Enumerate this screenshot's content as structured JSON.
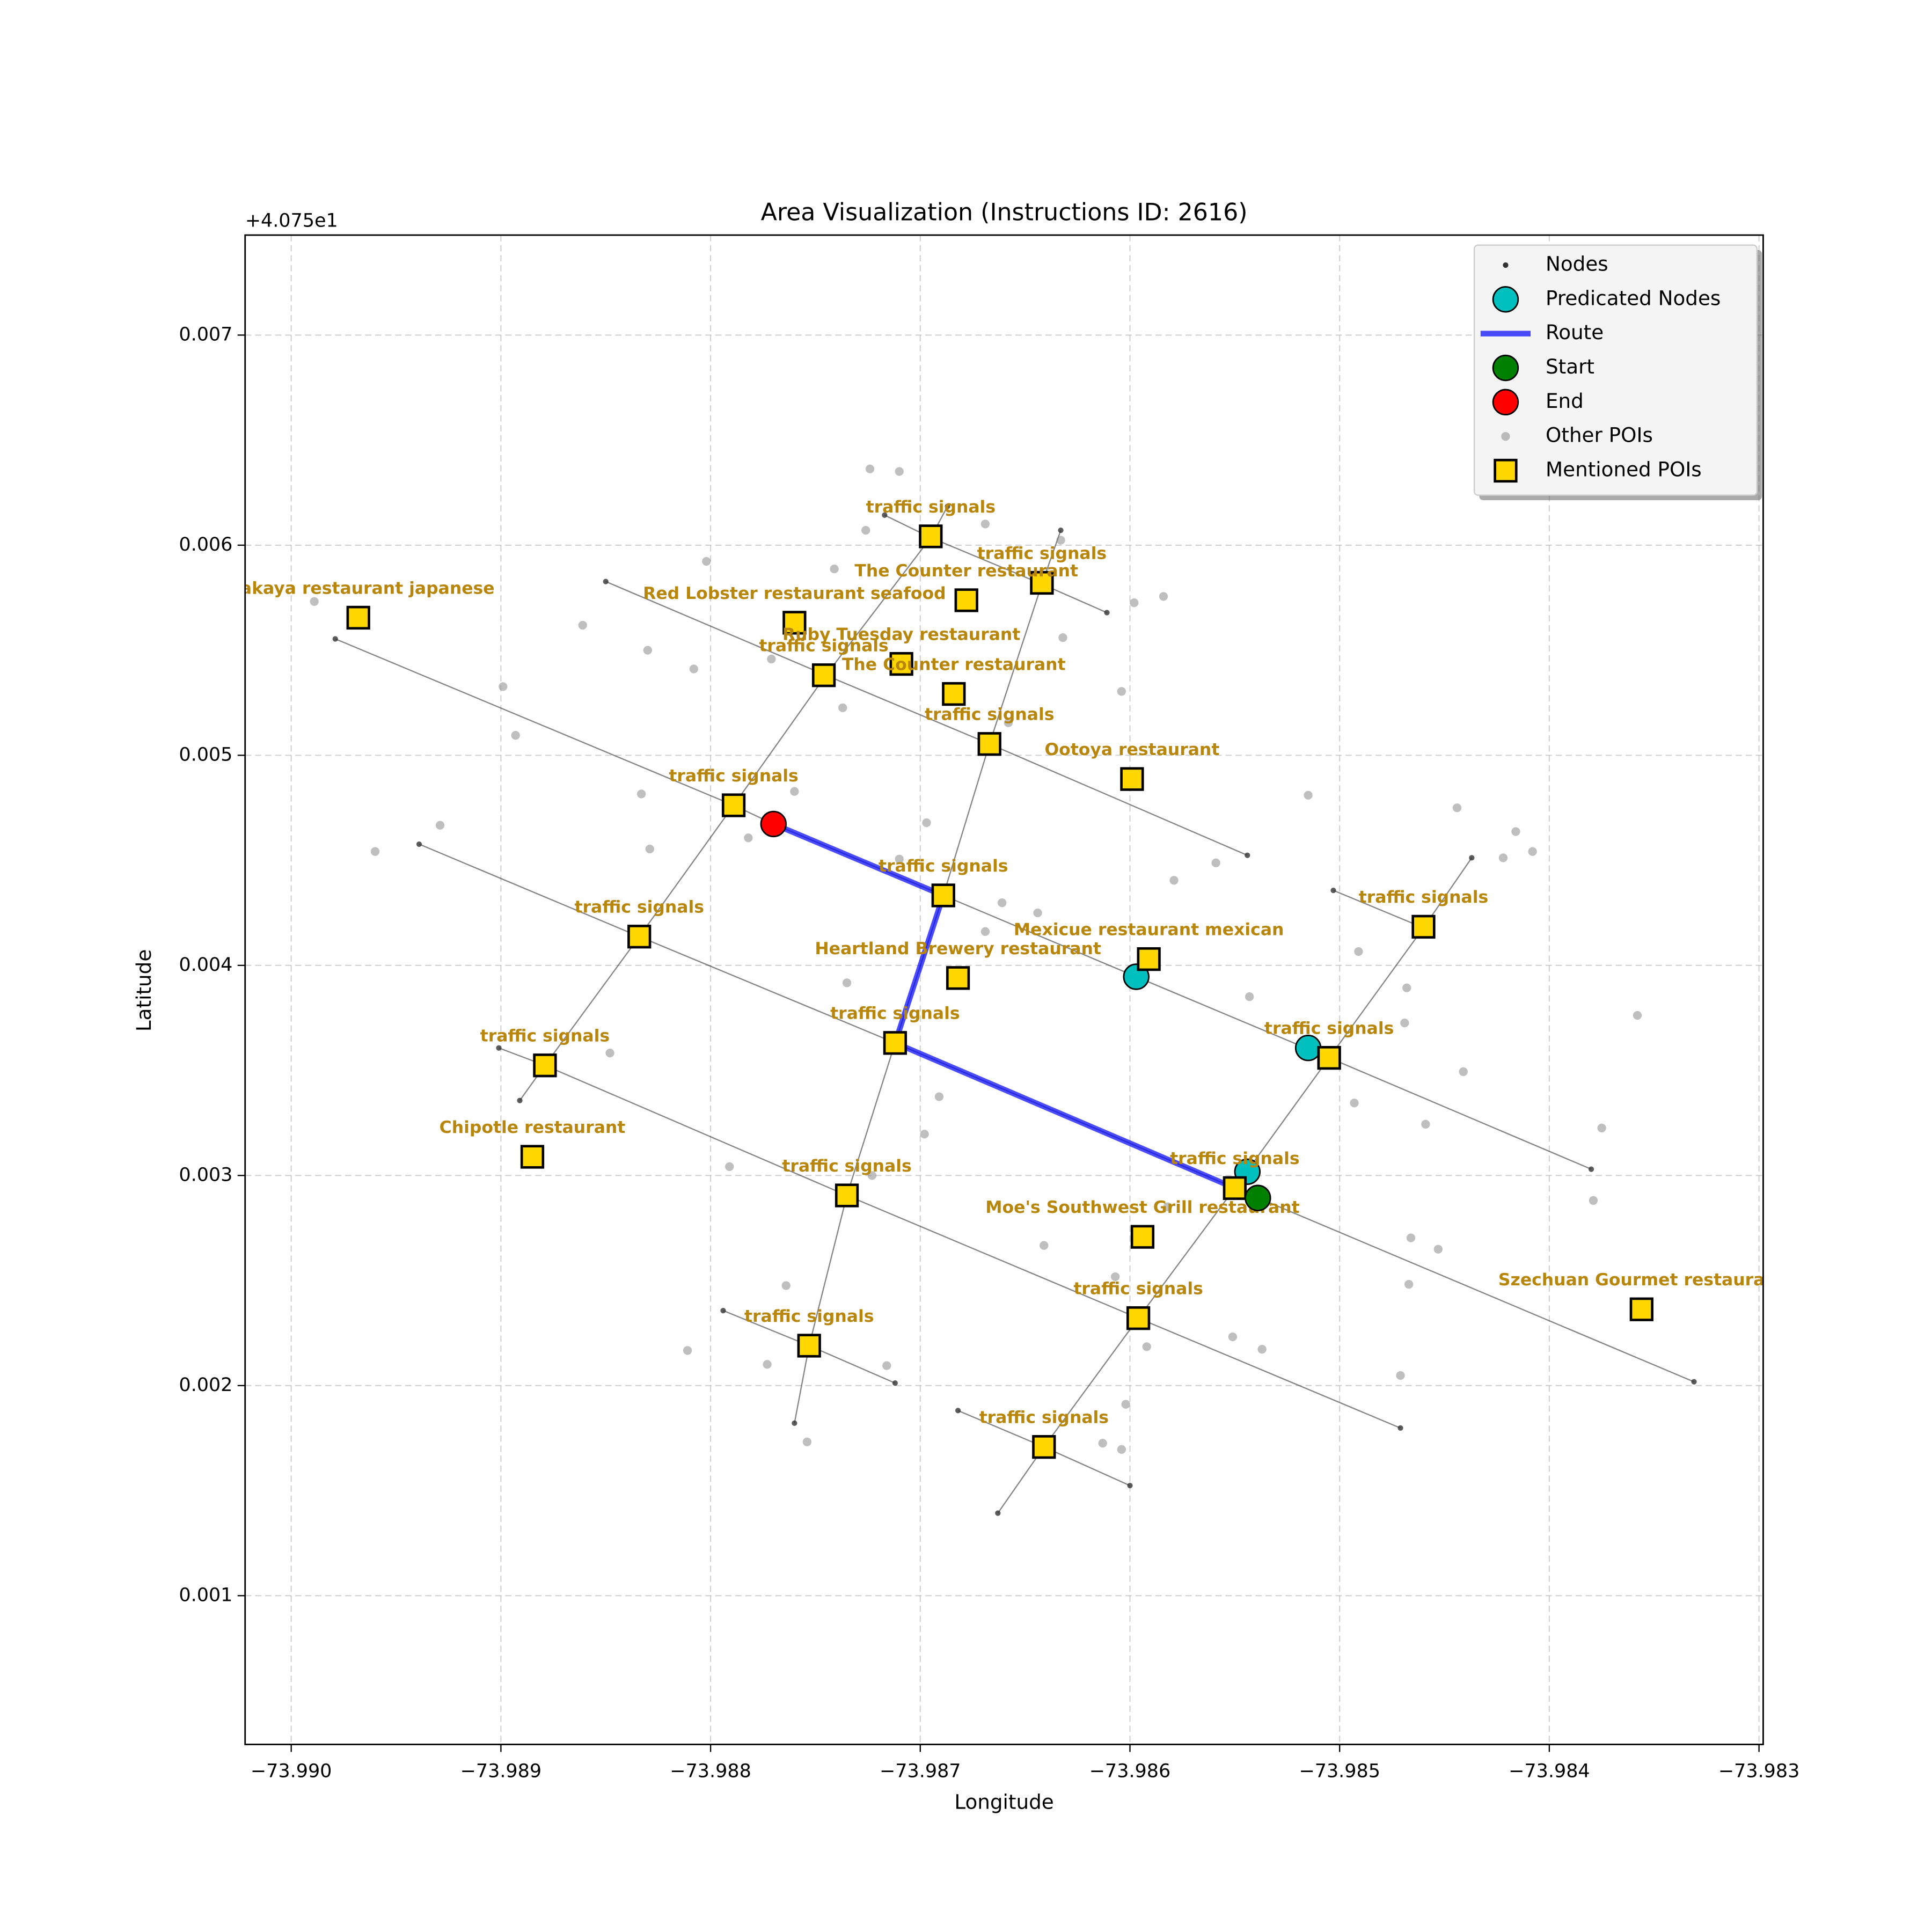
{
  "chart_data": {
    "type": "scatter",
    "title": "Area Visualization (Instructions ID: 2616)",
    "x_label": "Longitude",
    "y_label": "Latitude",
    "y_offset_label": "+4.075e1",
    "xlim": [
      -73.99022,
      -73.98298
    ],
    "ylim": [
      0.000292,
      0.007476
    ],
    "xticks": [
      {
        "value": -73.99,
        "label": "−73.990"
      },
      {
        "value": -73.989,
        "label": "−73.989"
      },
      {
        "value": -73.988,
        "label": "−73.988"
      },
      {
        "value": -73.987,
        "label": "−73.987"
      },
      {
        "value": -73.986,
        "label": "−73.986"
      },
      {
        "value": -73.985,
        "label": "−73.985"
      },
      {
        "value": -73.984,
        "label": "−73.984"
      },
      {
        "value": -73.983,
        "label": "−73.983"
      }
    ],
    "yticks": [
      0.001,
      0.002,
      0.003,
      0.004,
      0.005,
      0.006,
      0.007
    ],
    "grid": true,
    "legend": "upper right",
    "series": [
      {
        "name": "Nodes",
        "color": "#333333",
        "streets": [
          {
            "x": [
              -73.98979,
              -73.98789,
              -73.9877,
              -73.98689,
              -73.98597,
              -73.98505,
              -73.9838
            ],
            "y": [
              0.005554,
              0.004762,
              0.004673,
              0.004333,
              0.003946,
              0.00356,
              0.00303
            ]
          },
          {
            "x": [
              -73.9885,
              -73.98745,
              -73.98667,
              -73.98544
            ],
            "y": [
              0.005827,
              0.005381,
              0.005054,
              0.004524
            ]
          },
          {
            "x": [
              -73.98717,
              -73.98695,
              -73.98642,
              -73.98611
            ],
            "y": [
              0.006143,
              0.006036,
              0.005815,
              0.005679
            ]
          },
          {
            "x": [
              -73.98939,
              -73.98834,
              -73.98712,
              -73.9855,
              -73.98331
            ],
            "y": [
              0.004577,
              0.004137,
              0.003631,
              0.00294,
              0.002018
            ]
          },
          {
            "x": [
              -73.98901,
              -73.98879,
              -73.98735,
              -73.98596,
              -73.98471
            ],
            "y": [
              0.003607,
              0.003524,
              0.002905,
              0.002321,
              0.001798
            ]
          },
          {
            "x": [
              -73.98503,
              -73.9846
            ],
            "y": [
              0.004357,
              0.004179
            ]
          },
          {
            "x": [
              -73.98794,
              -73.98753,
              -73.98712
            ],
            "y": [
              0.002357,
              0.00219,
              0.002012
            ]
          },
          {
            "x": [
              -73.98682,
              -73.98641,
              -73.986
            ],
            "y": [
              0.001881,
              0.001708,
              0.001524
            ]
          },
          {
            "x": [
              -73.98891,
              -73.98879,
              -73.98834,
              -73.98789,
              -73.98745,
              -73.98695,
              -73.98687
            ],
            "y": [
              0.003357,
              0.003524,
              0.004137,
              0.004762,
              0.005381,
              0.006036,
              0.006185
            ]
          },
          {
            "x": [
              -73.9876,
              -73.98753,
              -73.98735,
              -73.98712,
              -73.98689,
              -73.98667,
              -73.98642,
              -73.98633
            ],
            "y": [
              0.001821,
              0.00219,
              0.002905,
              0.003631,
              0.004333,
              0.005054,
              0.005815,
              0.006071
            ]
          },
          {
            "x": [
              -73.98663,
              -73.98641,
              -73.98596,
              -73.9855,
              -73.98505,
              -73.9846,
              -73.98437
            ],
            "y": [
              0.001393,
              0.001708,
              0.002321,
              0.00294,
              0.00356,
              0.004179,
              0.004512
            ]
          }
        ]
      },
      {
        "name": "Predicated Nodes",
        "color": "#00bfbf",
        "x": [
          -73.98597,
          -73.98515,
          -73.98544
        ],
        "y": [
          0.003946,
          0.003607,
          0.003018
        ]
      },
      {
        "name": "Route",
        "color": "#0000ff",
        "x": [
          -73.9877,
          -73.98689,
          -73.98712,
          -73.9855
        ],
        "y": [
          0.004673,
          0.004333,
          0.003631,
          0.00294
        ]
      },
      {
        "name": "Start",
        "color": "#008000",
        "x": [
          -73.98539
        ],
        "y": [
          0.002893
        ]
      },
      {
        "name": "End",
        "color": "#ff0000",
        "x": [
          -73.9877
        ],
        "y": [
          0.004673
        ]
      },
      {
        "name": "Other POIs",
        "color": "#808080",
        "x": [
          -73.98724,
          -73.9871,
          -73.98726,
          -73.98669,
          -73.98633,
          -73.98741,
          -73.98584,
          -73.98598,
          -73.98632,
          -73.98771,
          -73.98808,
          -73.9883,
          -73.98861,
          -73.98802,
          -73.98989,
          -73.98899,
          -73.98893,
          -73.98604,
          -73.98737,
          -73.98658,
          -73.98833,
          -73.9876,
          -73.9896,
          -73.98929,
          -73.98829,
          -73.98782,
          -73.98697,
          -73.9871,
          -73.98661,
          -73.98644,
          -73.98669,
          -73.98579,
          -73.98559,
          -73.98515,
          -73.98444,
          -73.98416,
          -73.98408,
          -73.98422,
          -73.98735,
          -73.98543,
          -73.98491,
          -73.98468,
          -73.98469,
          -73.98441,
          -73.98358,
          -73.98493,
          -73.98459,
          -73.98375,
          -73.98379,
          -73.98691,
          -73.98698,
          -73.98848,
          -73.98791,
          -73.98723,
          -73.98641,
          -73.98607,
          -73.98466,
          -73.98453,
          -73.98467,
          -73.98764,
          -73.98773,
          -73.98716,
          -73.98811,
          -73.98754,
          -73.98602,
          -73.98613,
          -73.98604,
          -73.98551,
          -73.98537,
          -73.98592,
          -73.98471,
          -73.98582
        ],
        "y": [
          0.006363,
          0.006351,
          0.006071,
          0.006101,
          0.006024,
          0.005887,
          0.005756,
          0.005726,
          0.00556,
          0.005458,
          0.005411,
          0.0055,
          0.005619,
          0.005923,
          0.005732,
          0.005327,
          0.005095,
          0.005304,
          0.005226,
          0.005155,
          0.004816,
          0.004828,
          0.004542,
          0.004667,
          0.004554,
          0.004607,
          0.004679,
          0.004506,
          0.004298,
          0.00425,
          0.004161,
          0.004405,
          0.004488,
          0.00481,
          0.00475,
          0.004637,
          0.004542,
          0.004512,
          0.003917,
          0.003851,
          0.004066,
          0.003893,
          0.003726,
          0.003494,
          0.003762,
          0.003345,
          0.003244,
          0.003226,
          0.002881,
          0.003375,
          0.003197,
          0.003583,
          0.003042,
          0.003,
          0.002667,
          0.002518,
          0.002703,
          0.002649,
          0.002482,
          0.002476,
          0.002101,
          0.002095,
          0.002167,
          0.001732,
          0.001911,
          0.001726,
          0.001696,
          0.002232,
          0.002173,
          0.002185,
          0.002048,
          0.002851
        ]
      },
      {
        "name": "Mentioned POIs",
        "color": "#ffd700",
        "label_color": "#b8860b",
        "x": [
          -73.98968,
          -73.9876,
          -73.98695,
          -73.98642,
          -73.98678,
          -73.98746,
          -73.98709,
          -73.98684,
          -73.98667,
          -73.98599,
          -73.98789,
          -73.98689,
          -73.98834,
          -73.98591,
          -73.98682,
          -73.9846,
          -73.98712,
          -73.98879,
          -73.98505,
          -73.98885,
          -73.9855,
          -73.98735,
          -73.98594,
          -73.98356,
          -73.98596,
          -73.98753,
          -73.98641
        ],
        "y": [
          0.005655,
          0.005631,
          0.006042,
          0.005821,
          0.005738,
          0.005381,
          0.005435,
          0.005292,
          0.005054,
          0.004887,
          0.004762,
          0.004333,
          0.004137,
          0.00403,
          0.00394,
          0.004184,
          0.003631,
          0.003524,
          0.00356,
          0.003089,
          0.00294,
          0.002905,
          0.002708,
          0.002363,
          0.002321,
          0.00219,
          0.001708
        ],
        "labels": [
          "Inakaya restaurant japanese",
          "Red Lobster restaurant seafood",
          "traffic signals",
          "traffic signals",
          "The Counter restaurant",
          "traffic signals",
          "Ruby Tuesday restaurant",
          "The Counter restaurant",
          "traffic signals",
          "Ootoya restaurant",
          "traffic signals",
          "traffic signals",
          "traffic signals",
          "Mexicue restaurant mexican",
          "Heartland Brewery restaurant",
          "traffic signals",
          "traffic signals",
          "traffic signals",
          "traffic signals",
          "Chipotle restaurant",
          "traffic signals",
          "traffic signals",
          "Moe's Southwest Grill restaurant",
          "Szechuan Gourmet restaurant",
          "traffic signals",
          "traffic signals",
          "traffic signals"
        ]
      }
    ]
  }
}
